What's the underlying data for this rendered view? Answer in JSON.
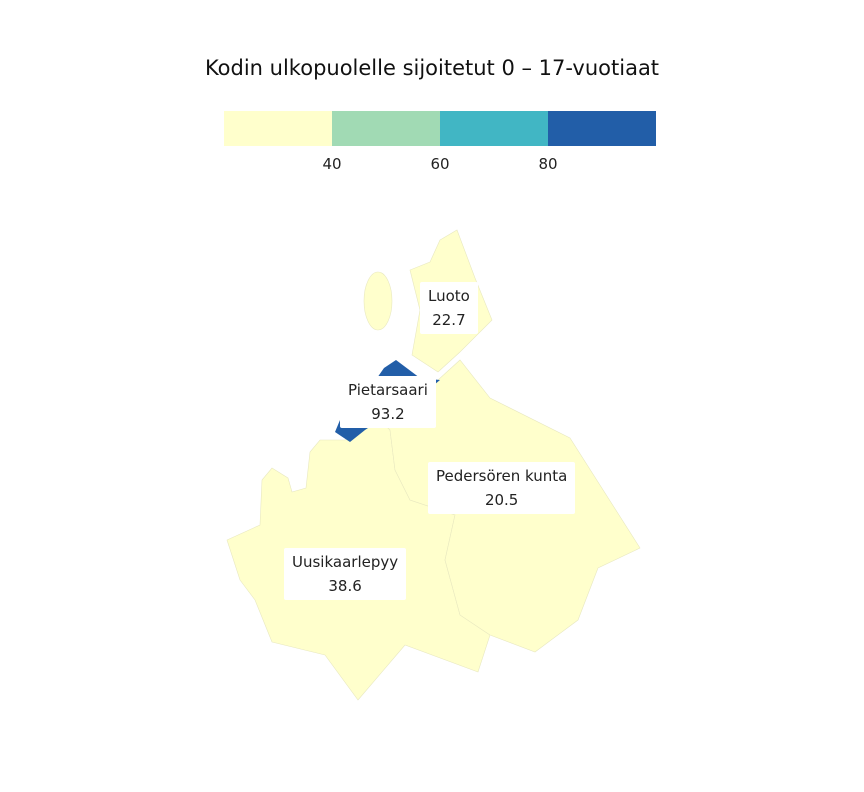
{
  "title": "Kodin ulkopuolelle sijoitetut 0 – 17-vuotiaat",
  "legend": {
    "colors": [
      "#ffffcc",
      "#a1dab4",
      "#41b6c4",
      "#225ea8"
    ],
    "ticks": [
      "40",
      "60",
      "80"
    ]
  },
  "regions": [
    {
      "name": "Luoto",
      "value": "22.7",
      "color": "#ffffcc"
    },
    {
      "name": "Pietarsaari",
      "value": "93.2",
      "color": "#225ea8"
    },
    {
      "name": "Pedersören kunta",
      "value": "20.5",
      "color": "#ffffcc"
    },
    {
      "name": "Uusikaarlepyy",
      "value": "38.6",
      "color": "#ffffcc"
    }
  ]
}
